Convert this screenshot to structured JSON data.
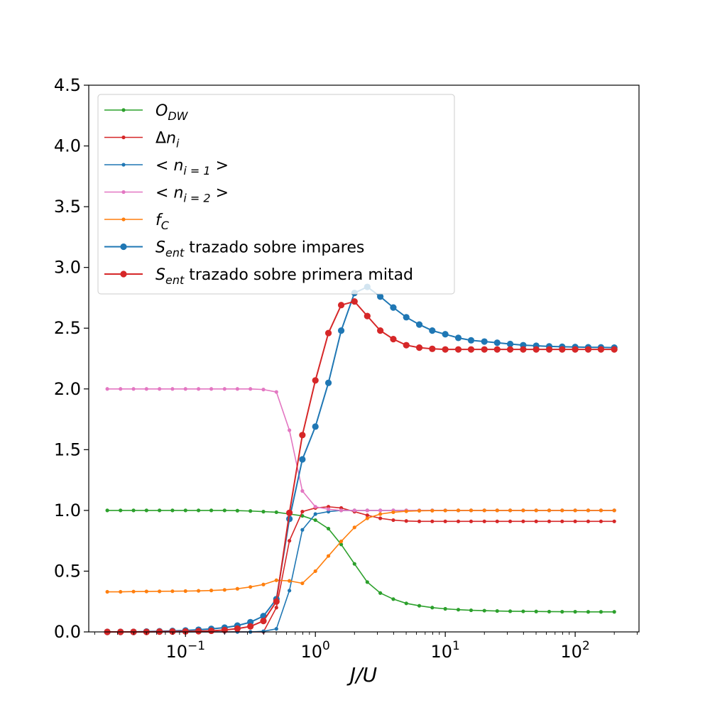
{
  "chart_data": {
    "type": "line",
    "x_scale": "log",
    "xlabel": "J/U",
    "ylabel": "",
    "xlim": [
      0.018,
      310
    ],
    "ylim": [
      0,
      4.5
    ],
    "grid": false,
    "legend_position": "upper-left",
    "y_ticks": [
      0.0,
      0.5,
      1.0,
      1.5,
      2.0,
      2.5,
      3.0,
      3.5,
      4.0,
      4.5
    ],
    "y_tick_labels": [
      "0.0",
      "0.5",
      "1.0",
      "1.5",
      "2.0",
      "2.5",
      "3.0",
      "3.5",
      "4.0",
      "4.5"
    ],
    "x_ticks": [
      0.1,
      1,
      10,
      100
    ],
    "x_tick_labels": [
      {
        "base": "10",
        "exp": "−1"
      },
      {
        "base": "10",
        "exp": "0"
      },
      {
        "base": "10",
        "exp": "1"
      },
      {
        "base": "10",
        "exp": "2"
      }
    ],
    "x": [
      0.025,
      0.0316,
      0.0398,
      0.0501,
      0.0631,
      0.0794,
      0.1,
      0.126,
      0.158,
      0.2,
      0.251,
      0.316,
      0.398,
      0.501,
      0.631,
      0.794,
      1.0,
      1.26,
      1.58,
      2.0,
      2.51,
      3.16,
      3.98,
      5.01,
      6.31,
      7.94,
      10.0,
      12.6,
      15.8,
      20.0,
      25.1,
      31.6,
      39.8,
      50.1,
      63.1,
      79.4,
      100,
      126,
      158,
      200
    ],
    "series": [
      {
        "name_parts": [
          {
            "t": "O",
            "i": true
          },
          {
            "t": "DW",
            "i": true,
            "sub": true
          }
        ],
        "color": "#2ca02c",
        "marker": "small",
        "values": [
          1.0,
          1.0,
          1.0,
          1.0,
          1.0,
          1.0,
          1.0,
          1.0,
          1.0,
          1.0,
          0.998,
          0.995,
          0.99,
          0.985,
          0.97,
          0.955,
          0.92,
          0.85,
          0.72,
          0.56,
          0.41,
          0.32,
          0.27,
          0.235,
          0.215,
          0.2,
          0.19,
          0.183,
          0.178,
          0.175,
          0.172,
          0.17,
          0.169,
          0.168,
          0.167,
          0.166,
          0.166,
          0.165,
          0.165,
          0.165
        ]
      },
      {
        "name_parts": [
          {
            "t": "Δ",
            "i": false
          },
          {
            "t": "n",
            "i": true
          },
          {
            "t": "i",
            "i": true,
            "sub": true
          }
        ],
        "color": "#d62728",
        "marker": "small",
        "values": [
          0.0,
          0.0,
          0.0,
          0.0,
          0.0,
          0.0,
          0.0,
          0.0,
          0.0,
          0.0,
          0.0,
          0.0,
          0.0,
          0.2,
          0.75,
          0.99,
          1.02,
          1.03,
          1.02,
          0.99,
          0.96,
          0.935,
          0.92,
          0.913,
          0.91,
          0.91,
          0.91,
          0.91,
          0.91,
          0.91,
          0.91,
          0.91,
          0.91,
          0.91,
          0.91,
          0.91,
          0.91,
          0.91,
          0.91,
          0.91
        ]
      },
      {
        "name_parts": [
          {
            "t": "< ",
            "i": false
          },
          {
            "t": "n",
            "i": true
          },
          {
            "t": "i = 1",
            "i": true,
            "sub": true
          },
          {
            "t": " >",
            "i": false
          }
        ],
        "color": "#1f77b4",
        "marker": "small",
        "values": [
          0.0,
          0.0,
          0.0,
          0.0,
          0.0,
          0.0,
          0.0,
          0.0,
          0.0,
          0.0,
          0.0,
          0.0,
          0.005,
          0.025,
          0.34,
          0.84,
          0.97,
          0.99,
          1.0,
          1.0,
          1.0,
          1.0,
          1.0,
          1.0,
          1.0,
          1.0,
          1.0,
          1.0,
          1.0,
          1.0,
          1.0,
          1.0,
          1.0,
          1.0,
          1.0,
          1.0,
          1.0,
          1.0,
          1.0,
          1.0
        ]
      },
      {
        "name_parts": [
          {
            "t": "< ",
            "i": false
          },
          {
            "t": "n",
            "i": true
          },
          {
            "t": "i = 2",
            "i": true,
            "sub": true
          },
          {
            "t": " >",
            "i": false
          }
        ],
        "color": "#e377c2",
        "marker": "small",
        "values": [
          2.0,
          2.0,
          2.0,
          2.0,
          2.0,
          2.0,
          2.0,
          2.0,
          2.0,
          2.0,
          2.0,
          2.0,
          1.995,
          1.975,
          1.66,
          1.16,
          1.03,
          1.01,
          1.0,
          1.0,
          1.0,
          1.0,
          1.0,
          1.0,
          1.0,
          1.0,
          1.0,
          1.0,
          1.0,
          1.0,
          1.0,
          1.0,
          1.0,
          1.0,
          1.0,
          1.0,
          1.0,
          1.0,
          1.0,
          1.0
        ]
      },
      {
        "name_parts": [
          {
            "t": "f",
            "i": true
          },
          {
            "t": "C",
            "i": true,
            "sub": true
          }
        ],
        "color": "#ff7f0e",
        "marker": "small",
        "values": [
          0.33,
          0.33,
          0.332,
          0.333,
          0.334,
          0.335,
          0.336,
          0.338,
          0.341,
          0.346,
          0.355,
          0.37,
          0.39,
          0.425,
          0.42,
          0.4,
          0.5,
          0.625,
          0.745,
          0.86,
          0.935,
          0.97,
          0.985,
          0.993,
          0.997,
          0.998,
          0.999,
          1.0,
          1.0,
          1.0,
          1.0,
          1.0,
          1.0,
          1.0,
          1.0,
          1.0,
          1.0,
          1.0,
          1.0,
          1.0
        ]
      },
      {
        "name_parts": [
          {
            "t": "S",
            "i": true
          },
          {
            "t": "ent",
            "i": true,
            "sub": true
          },
          {
            "t": " trazado sobre impares",
            "i": false
          }
        ],
        "color": "#1f77b4",
        "marker": "large",
        "values": [
          0.0,
          0.0,
          0.0,
          0.003,
          0.005,
          0.008,
          0.012,
          0.018,
          0.025,
          0.035,
          0.052,
          0.08,
          0.13,
          0.27,
          0.93,
          1.42,
          1.69,
          2.05,
          2.48,
          2.79,
          2.84,
          2.76,
          2.67,
          2.59,
          2.53,
          2.48,
          2.45,
          2.42,
          2.4,
          2.39,
          2.38,
          2.37,
          2.36,
          2.355,
          2.35,
          2.347,
          2.345,
          2.343,
          2.342,
          2.34
        ]
      },
      {
        "name_parts": [
          {
            "t": "S",
            "i": true
          },
          {
            "t": "ent",
            "i": true,
            "sub": true
          },
          {
            "t": " trazado sobre primera mitad",
            "i": false
          }
        ],
        "color": "#d62728",
        "marker": "large",
        "values": [
          0.0,
          0.0,
          0.0,
          0.0,
          0.002,
          0.003,
          0.004,
          0.006,
          0.009,
          0.015,
          0.027,
          0.045,
          0.09,
          0.25,
          0.98,
          1.62,
          2.07,
          2.46,
          2.69,
          2.72,
          2.6,
          2.48,
          2.41,
          2.36,
          2.34,
          2.33,
          2.325,
          2.325,
          2.325,
          2.325,
          2.325,
          2.325,
          2.325,
          2.325,
          2.325,
          2.325,
          2.325,
          2.325,
          2.325,
          2.325
        ]
      }
    ]
  }
}
